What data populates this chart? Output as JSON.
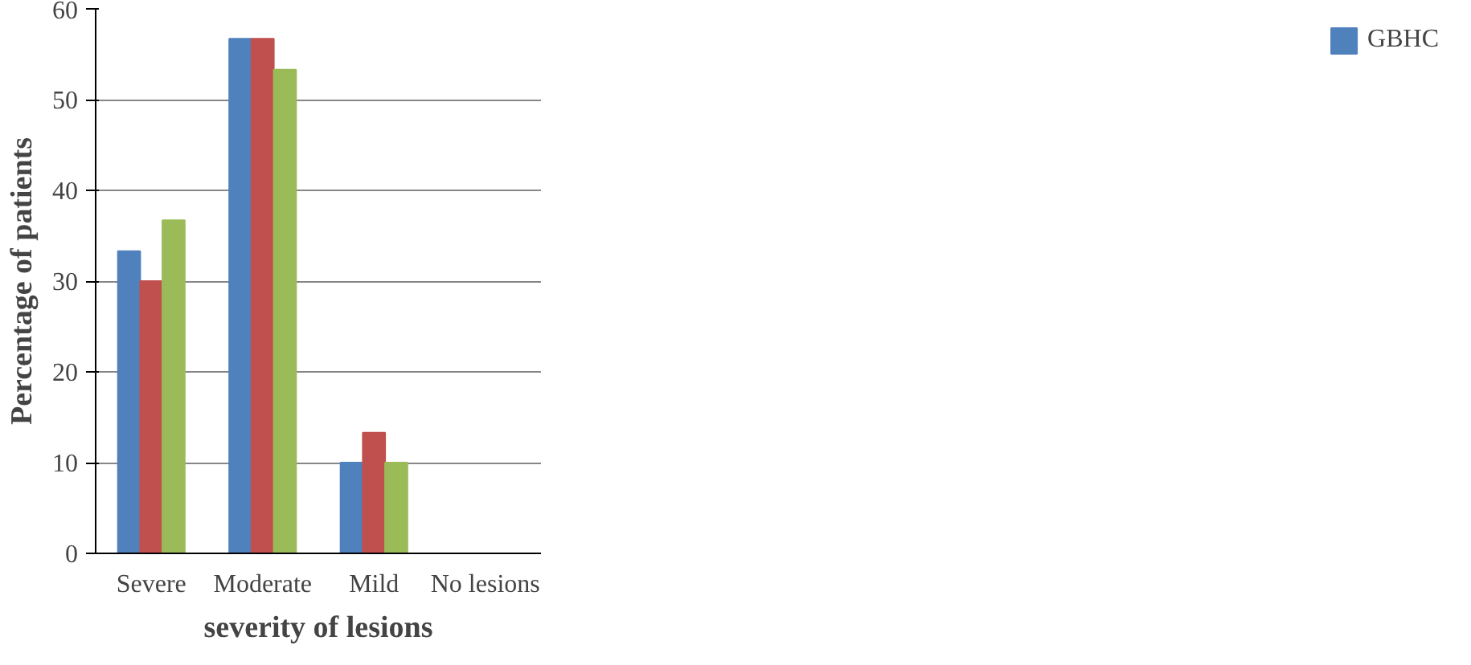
{
  "chart_data": {
    "type": "bar",
    "xlabel": "severity of lesions",
    "ylabel": "Percentage of patients",
    "categories": [
      "Severe",
      "Moderate",
      "Mild",
      "No lesions"
    ],
    "series": [
      {
        "name": "GBHC",
        "color": "#4f81bd",
        "values": [
          33.3,
          56.7,
          10,
          0
        ]
      },
      {
        "color": "#c0504d",
        "values": [
          30,
          56.7,
          13.3,
          0
        ]
      },
      {
        "color": "#9bbb59",
        "values": [
          36.7,
          53.3,
          10,
          0
        ]
      }
    ],
    "ylim": [
      0,
      60
    ],
    "yticks": [
      0,
      10,
      20,
      30,
      40,
      50,
      60
    ],
    "grid": "y",
    "legend": "right"
  }
}
